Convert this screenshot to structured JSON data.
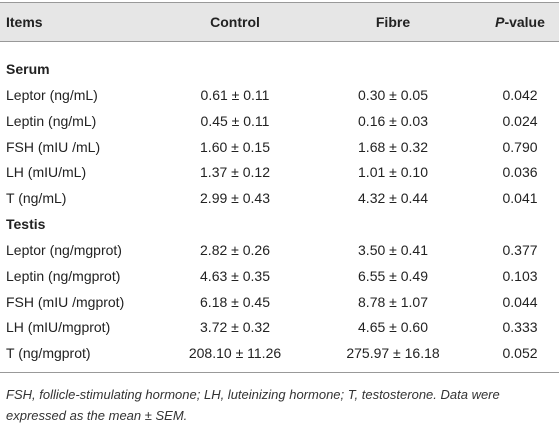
{
  "table": {
    "header": [
      "Items",
      "Control",
      "Fibre",
      {
        "italic": "P",
        "text": "-value"
      }
    ],
    "sections": [
      {
        "title": "Serum",
        "rows": [
          [
            "Leptor (ng/mL)",
            "0.61 ± 0.11",
            "0.30 ± 0.05",
            "0.042"
          ],
          [
            "Leptin (ng/mL)",
            "0.45 ± 0.11",
            "0.16 ± 0.03",
            "0.024"
          ],
          [
            "FSH (mIU /mL)",
            "1.60 ± 0.15",
            "1.68 ± 0.32",
            "0.790"
          ],
          [
            "LH (mIU/mL)",
            "1.37 ± 0.12",
            "1.01 ± 0.10",
            "0.036"
          ],
          [
            "T (ng/mL)",
            "2.99 ± 0.43",
            "4.32 ± 0.44",
            "0.041"
          ]
        ]
      },
      {
        "title": "Testis",
        "rows": [
          [
            "Leptor (ng/mgprot)",
            "2.82 ± 0.26",
            "3.50 ± 0.41",
            "0.377"
          ],
          [
            "Leptin (ng/mgprot)",
            "4.63 ± 0.35",
            "6.55 ± 0.49",
            "0.103"
          ],
          [
            "FSH (mIU /mgprot)",
            "6.18 ± 0.45",
            "8.78 ± 1.07",
            "0.044"
          ],
          [
            "LH (mIU/mgprot)",
            "3.72 ± 0.32",
            "4.65 ± 0.60",
            "0.333"
          ],
          [
            "T (ng/mgprot)",
            "208.10 ± 11.26",
            "275.97 ± 16.18",
            "0.052"
          ]
        ]
      }
    ],
    "footnote": "FSH, follicle-stimulating hormone; LH, luteinizing hormone; T, testosterone. Data were expressed as the mean ± SEM."
  }
}
